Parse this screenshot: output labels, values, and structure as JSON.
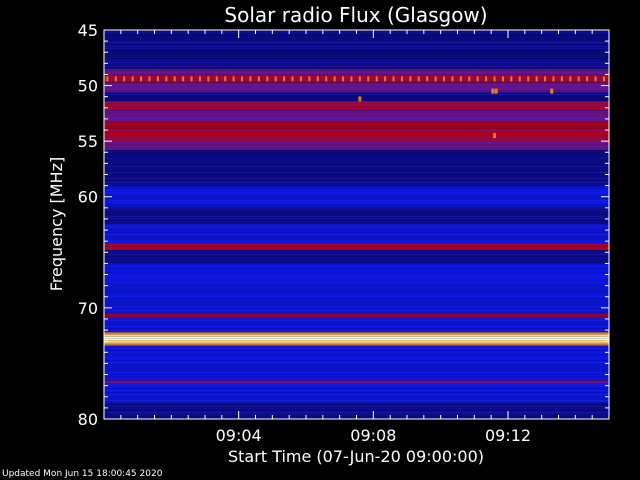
{
  "chart_data": {
    "type": "heatmap",
    "title": "Solar radio Flux (Glasgow)",
    "ylabel": "Frequency [MHz]",
    "xlabel": "Start Time (07-Jun-20 09:00:00)",
    "x_unit": "minutes after 09:00:00",
    "xlim": [
      0,
      15
    ],
    "ylim": [
      45,
      80
    ],
    "y_axis_inverted": true,
    "x_ticks": [
      {
        "value": 4,
        "label": "09:04"
      },
      {
        "value": 8,
        "label": "09:08"
      },
      {
        "value": 12,
        "label": "09:12"
      }
    ],
    "y_ticks": [
      {
        "value": 45,
        "label": "45"
      },
      {
        "value": 50,
        "label": "50"
      },
      {
        "value": 55,
        "label": "55"
      },
      {
        "value": 60,
        "label": "60"
      },
      {
        "value": 70,
        "label": "70"
      },
      {
        "value": 80,
        "label": "80"
      }
    ],
    "colors": {
      "background": "#000000",
      "axes": "#ffffff",
      "base": "#0a14dc",
      "dark": "#0a0a82",
      "purple": "#6a1080",
      "red": "#b00018",
      "orange": "#f07a12",
      "yellow": "#ffe060",
      "white": "#fffde8"
    },
    "intensity_bands": [
      {
        "from_mhz": 45.0,
        "to_mhz": 45.5,
        "level": "dark"
      },
      {
        "from_mhz": 45.5,
        "to_mhz": 47.0,
        "level": "dark"
      },
      {
        "from_mhz": 47.0,
        "to_mhz": 48.5,
        "level": "dark"
      },
      {
        "from_mhz": 48.5,
        "to_mhz": 49.1,
        "level": "purple"
      },
      {
        "from_mhz": 49.1,
        "to_mhz": 49.7,
        "level": "red"
      },
      {
        "from_mhz": 49.7,
        "to_mhz": 50.6,
        "level": "purple"
      },
      {
        "from_mhz": 50.6,
        "to_mhz": 51.4,
        "level": "dark"
      },
      {
        "from_mhz": 51.4,
        "to_mhz": 52.2,
        "level": "red"
      },
      {
        "from_mhz": 52.2,
        "to_mhz": 53.2,
        "level": "purple"
      },
      {
        "from_mhz": 53.2,
        "to_mhz": 55.0,
        "level": "red"
      },
      {
        "from_mhz": 55.0,
        "to_mhz": 55.8,
        "level": "purple"
      },
      {
        "from_mhz": 55.8,
        "to_mhz": 59.0,
        "level": "dark"
      },
      {
        "from_mhz": 59.0,
        "to_mhz": 61.0,
        "level": "base"
      },
      {
        "from_mhz": 61.0,
        "to_mhz": 62.5,
        "level": "dark"
      },
      {
        "from_mhz": 62.5,
        "to_mhz": 64.2,
        "level": "base"
      },
      {
        "from_mhz": 64.2,
        "to_mhz": 64.8,
        "level": "red"
      },
      {
        "from_mhz": 64.8,
        "to_mhz": 66.0,
        "level": "dark"
      },
      {
        "from_mhz": 66.0,
        "to_mhz": 70.5,
        "level": "base"
      },
      {
        "from_mhz": 70.5,
        "to_mhz": 70.9,
        "level": "red"
      },
      {
        "from_mhz": 70.9,
        "to_mhz": 72.2,
        "level": "base"
      },
      {
        "from_mhz": 72.2,
        "to_mhz": 72.4,
        "level": "orange"
      },
      {
        "from_mhz": 72.4,
        "to_mhz": 72.6,
        "level": "yellow"
      },
      {
        "from_mhz": 72.6,
        "to_mhz": 72.9,
        "level": "white"
      },
      {
        "from_mhz": 72.9,
        "to_mhz": 73.2,
        "level": "yellow"
      },
      {
        "from_mhz": 73.2,
        "to_mhz": 73.4,
        "level": "orange"
      },
      {
        "from_mhz": 73.4,
        "to_mhz": 76.5,
        "level": "base"
      },
      {
        "from_mhz": 76.5,
        "to_mhz": 76.8,
        "level": "purple"
      },
      {
        "from_mhz": 76.8,
        "to_mhz": 78.5,
        "level": "base"
      },
      {
        "from_mhz": 78.5,
        "to_mhz": 80.0,
        "level": "dark"
      }
    ],
    "interference_pulses": {
      "frequency_mhz": 49.4,
      "interval_min": 0.25,
      "start_min": 0.1,
      "end_min": 14.9
    },
    "bright_spots": [
      {
        "time_min": 7.6,
        "freq_mhz": 51.2
      },
      {
        "time_min": 11.55,
        "freq_mhz": 50.5
      },
      {
        "time_min": 11.65,
        "freq_mhz": 50.5
      },
      {
        "time_min": 11.6,
        "freq_mhz": 54.5
      },
      {
        "time_min": 13.3,
        "freq_mhz": 50.5
      }
    ]
  },
  "footer": {
    "updated": "Updated Mon Jun 15 18:00:45 2020"
  }
}
